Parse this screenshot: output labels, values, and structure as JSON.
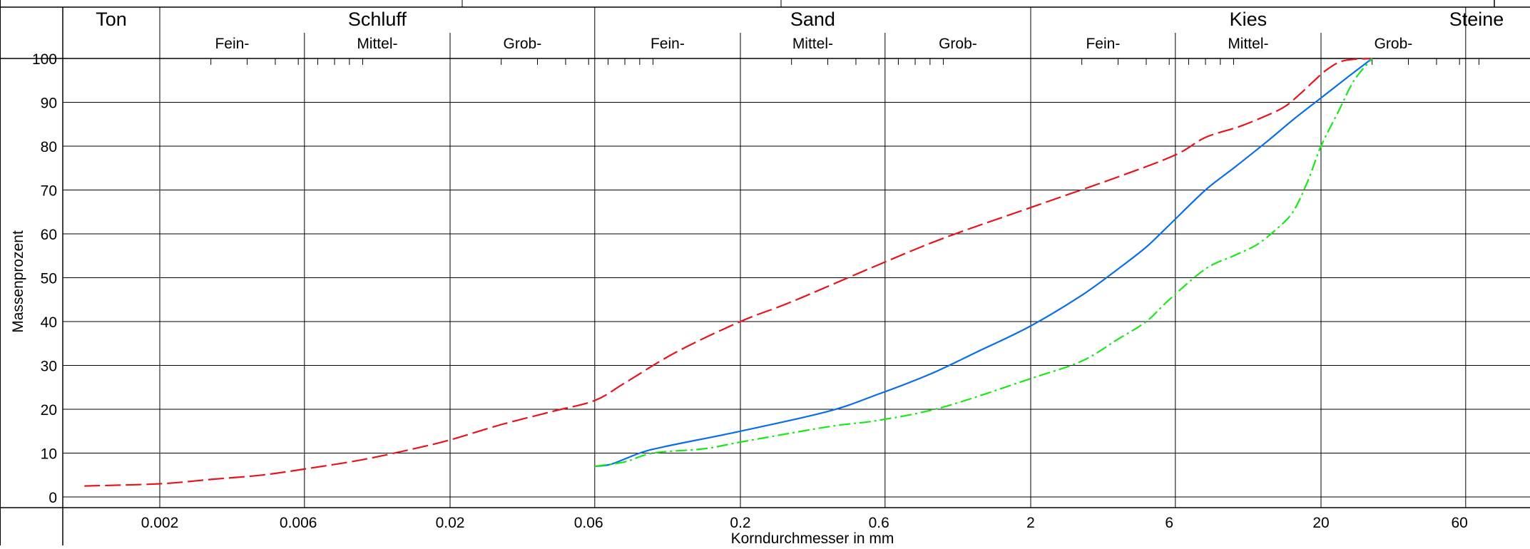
{
  "chart_data": {
    "type": "line",
    "title": "",
    "xlabel": "Korndurchmesser in mm",
    "ylabel": "Massenprozent",
    "x_scale": "log",
    "xlim": [
      0.001,
      100
    ],
    "ylim": [
      0,
      100
    ],
    "y_ticks": [
      0,
      10,
      20,
      30,
      40,
      50,
      60,
      70,
      80,
      90,
      100
    ],
    "x_ticks": [
      "0.002",
      "0.006",
      "0.02",
      "0.06",
      "0.2",
      "0.6",
      "2",
      "6",
      "20",
      "60"
    ],
    "x_tick_values": [
      0.002,
      0.006,
      0.02,
      0.06,
      0.2,
      0.6,
      2,
      6,
      20,
      60
    ],
    "grid": true,
    "bands": [
      {
        "label": "Ton",
        "from": 0.001,
        "to": 0.002
      },
      {
        "label": "Schluff",
        "from": 0.002,
        "to": 0.063
      },
      {
        "label": "Sand",
        "from": 0.063,
        "to": 2
      },
      {
        "label": "Kies",
        "from": 2,
        "to": 63
      },
      {
        "label": "Steine",
        "from": 63,
        "to": 100
      }
    ],
    "subbands": [
      {
        "label": "Fein-",
        "from": 0.002,
        "to": 0.0063
      },
      {
        "label": "Mittel-",
        "from": 0.0063,
        "to": 0.02
      },
      {
        "label": "Grob-",
        "from": 0.02,
        "to": 0.063
      },
      {
        "label": "Fein-",
        "from": 0.063,
        "to": 0.2
      },
      {
        "label": "Mittel-",
        "from": 0.2,
        "to": 0.63
      },
      {
        "label": "Grob-",
        "from": 0.63,
        "to": 2
      },
      {
        "label": "Fein-",
        "from": 2,
        "to": 6.3
      },
      {
        "label": "Mittel-",
        "from": 6.3,
        "to": 20
      },
      {
        "label": "Grob-",
        "from": 20,
        "to": 63
      }
    ],
    "series": [
      {
        "color": "#e8141c",
        "dash": "dashed",
        "points": [
          [
            0.0011,
            2.5
          ],
          [
            0.002,
            3
          ],
          [
            0.003,
            4
          ],
          [
            0.0045,
            5
          ],
          [
            0.0065,
            6.5
          ],
          [
            0.01,
            8.5
          ],
          [
            0.015,
            11
          ],
          [
            0.02,
            13
          ],
          [
            0.03,
            16.5
          ],
          [
            0.045,
            19.5
          ],
          [
            0.063,
            22
          ],
          [
            0.08,
            26
          ],
          [
            0.12,
            33
          ],
          [
            0.2,
            40
          ],
          [
            0.3,
            44.5
          ],
          [
            0.6,
            53
          ],
          [
            1.0,
            59
          ],
          [
            2.0,
            66
          ],
          [
            4.0,
            73
          ],
          [
            6.3,
            78
          ],
          [
            8,
            82
          ],
          [
            10.5,
            84.5
          ],
          [
            13,
            87
          ],
          [
            15,
            89
          ],
          [
            17,
            92
          ],
          [
            19,
            95
          ],
          [
            21,
            97.5
          ],
          [
            24,
            99.5
          ],
          [
            30,
            100
          ]
        ]
      },
      {
        "color": "#0a6fe6",
        "dash": "solid",
        "points": [
          [
            0.063,
            7
          ],
          [
            0.072,
            7.5
          ],
          [
            0.09,
            10
          ],
          [
            0.11,
            11.5
          ],
          [
            0.2,
            15
          ],
          [
            0.4,
            19.5
          ],
          [
            0.6,
            23.5
          ],
          [
            0.9,
            28
          ],
          [
            1.3,
            33
          ],
          [
            2.0,
            39
          ],
          [
            3.0,
            46
          ],
          [
            4.0,
            52
          ],
          [
            5.0,
            57
          ],
          [
            6.0,
            62
          ],
          [
            8.0,
            70
          ],
          [
            10,
            75
          ],
          [
            13,
            81
          ],
          [
            16,
            86
          ],
          [
            20,
            91
          ],
          [
            25,
            96
          ],
          [
            30,
            100
          ]
        ]
      },
      {
        "color": "#18e818",
        "dash": "dashdot",
        "points": [
          [
            0.063,
            7
          ],
          [
            0.08,
            8
          ],
          [
            0.1,
            10
          ],
          [
            0.15,
            11
          ],
          [
            0.2,
            12.5
          ],
          [
            0.4,
            16
          ],
          [
            0.6,
            17.5
          ],
          [
            1.0,
            20.5
          ],
          [
            2.0,
            27
          ],
          [
            3.0,
            31
          ],
          [
            4.0,
            36
          ],
          [
            5.0,
            40
          ],
          [
            6.0,
            45
          ],
          [
            8.0,
            52
          ],
          [
            10,
            55
          ],
          [
            12,
            57.5
          ],
          [
            14,
            61
          ],
          [
            16,
            65
          ],
          [
            18,
            72
          ],
          [
            20,
            80
          ],
          [
            23,
            88
          ],
          [
            26,
            95
          ],
          [
            30,
            100
          ]
        ]
      }
    ]
  }
}
